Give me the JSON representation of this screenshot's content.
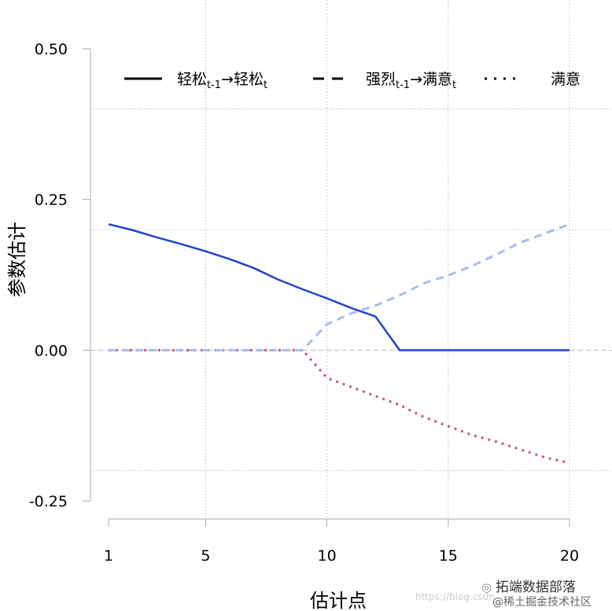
{
  "chart_data": {
    "type": "line",
    "title": "",
    "xlabel": "估计点",
    "ylabel": "参数估计",
    "xlim": [
      1,
      20
    ],
    "ylim": [
      -0.25,
      0.5
    ],
    "x_ticks": [
      "1",
      "5",
      "10",
      "15",
      "20"
    ],
    "y_ticks": [
      "-0.25",
      "0.00",
      "0.25",
      "0.50"
    ],
    "grid": true,
    "legend_position": "top",
    "x": [
      1,
      2,
      3,
      4,
      5,
      6,
      7,
      8,
      9,
      10,
      11,
      12,
      13,
      14,
      15,
      16,
      17,
      18,
      19,
      20
    ],
    "series": [
      {
        "name": "轻松t-1 → 轻松t",
        "legend": {
          "base1": "轻松",
          "sub1": "t-1",
          "arrow": "→",
          "base2": "轻松",
          "sub2": "t"
        },
        "style": "solid",
        "color": "#2244cc",
        "values": [
          0.209,
          0.199,
          0.187,
          0.176,
          0.164,
          0.151,
          0.136,
          0.117,
          0.101,
          0.086,
          0.07,
          0.056,
          0,
          0,
          0,
          0,
          0,
          0,
          0,
          0
        ]
      },
      {
        "name": "强烈t-1 → 满意t",
        "legend": {
          "base1": "强烈",
          "sub1": "t-1",
          "arrow": "→",
          "base2": "满意",
          "sub2": "t"
        },
        "style": "dashed",
        "color": "#aabbee",
        "values": [
          0,
          0,
          0,
          0,
          0,
          0,
          0,
          0,
          0,
          0.043,
          0.061,
          0.074,
          0.091,
          0.111,
          0.124,
          0.14,
          0.159,
          0.179,
          0.194,
          0.209
        ]
      },
      {
        "name": "满意",
        "legend": {
          "base1": "满意"
        },
        "style": "dotted",
        "color": "#cc5577",
        "values": [
          0,
          0,
          0,
          0,
          0,
          0,
          0,
          0,
          0,
          -0.046,
          -0.061,
          -0.076,
          -0.091,
          -0.111,
          -0.126,
          -0.141,
          -0.152,
          -0.165,
          -0.178,
          -0.187
        ]
      }
    ]
  },
  "watermark": {
    "url": "https://blog.csdn",
    "brand": "拓端数据部落",
    "community": "@稀土掘金技术社区"
  }
}
